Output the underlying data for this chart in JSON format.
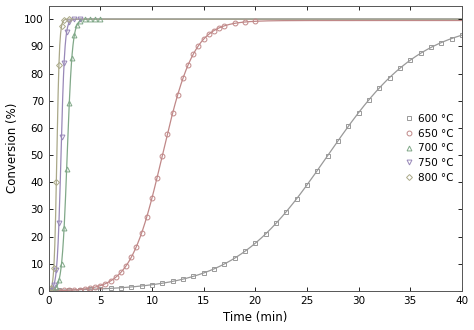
{
  "title": "",
  "xlabel": "Time (min)",
  "ylabel": "Conversion (%)",
  "xlim": [
    0,
    40
  ],
  "ylim": [
    0,
    105
  ],
  "yticks": [
    0,
    10,
    20,
    30,
    40,
    50,
    60,
    70,
    80,
    90,
    100
  ],
  "xticks": [
    0,
    5,
    10,
    15,
    20,
    25,
    30,
    35,
    40
  ],
  "series": [
    {
      "label": "600 °C",
      "color": "#999999",
      "marker": "s",
      "markersize": 3.5,
      "sigmoid_k": 0.22,
      "sigmoid_x0": 27.0,
      "max_conv": 99.5,
      "t_pts": [
        0,
        1,
        2,
        3,
        4,
        5,
        6,
        7,
        8,
        9,
        10,
        11,
        12,
        13,
        14,
        15,
        16,
        17,
        18,
        19,
        20,
        21,
        22,
        23,
        24,
        25,
        26,
        27,
        28,
        29,
        30,
        31,
        32,
        33,
        34,
        35,
        36,
        37,
        38,
        39,
        40
      ]
    },
    {
      "label": "650 °C",
      "color": "#c08888",
      "marker": "o",
      "markersize": 3.5,
      "sigmoid_k": 0.65,
      "sigmoid_x0": 11.0,
      "max_conv": 99.5,
      "t_pts": [
        0,
        0.5,
        1,
        1.5,
        2,
        2.5,
        3,
        3.5,
        4,
        4.5,
        5,
        5.5,
        6,
        6.5,
        7,
        7.5,
        8,
        8.5,
        9,
        9.5,
        10,
        10.5,
        11,
        11.5,
        12,
        12.5,
        13,
        13.5,
        14,
        14.5,
        15,
        15.5,
        16,
        16.5,
        17,
        18,
        19,
        20
      ]
    },
    {
      "label": "700 °C",
      "color": "#80a888",
      "marker": "^",
      "markersize": 3.5,
      "sigmoid_k": 4.0,
      "sigmoid_x0": 1.8,
      "max_conv": 100.0,
      "t_pts": [
        0,
        0.25,
        0.5,
        0.75,
        1.0,
        1.25,
        1.5,
        1.75,
        2.0,
        2.25,
        2.5,
        2.75,
        3.0,
        3.5,
        4.0,
        4.5,
        5.0
      ]
    },
    {
      "label": "750 °C",
      "color": "#9888b8",
      "marker": "v",
      "markersize": 3.5,
      "sigmoid_k": 5.5,
      "sigmoid_x0": 1.2,
      "max_conv": 100.0,
      "t_pts": [
        0,
        0.25,
        0.5,
        0.75,
        1.0,
        1.25,
        1.5,
        1.75,
        2.0,
        2.5,
        3.0
      ]
    },
    {
      "label": "800 °C",
      "color": "#aaa888",
      "marker": "D",
      "markersize": 3.0,
      "sigmoid_k": 8.0,
      "sigmoid_x0": 0.8,
      "max_conv": 100.0,
      "t_pts": [
        0,
        0.25,
        0.5,
        0.75,
        1.0,
        1.25,
        1.5,
        2.0
      ]
    }
  ],
  "legend_loc": "center right",
  "background_color": "#ffffff",
  "fig_width": 4.74,
  "fig_height": 3.3,
  "dpi": 100
}
